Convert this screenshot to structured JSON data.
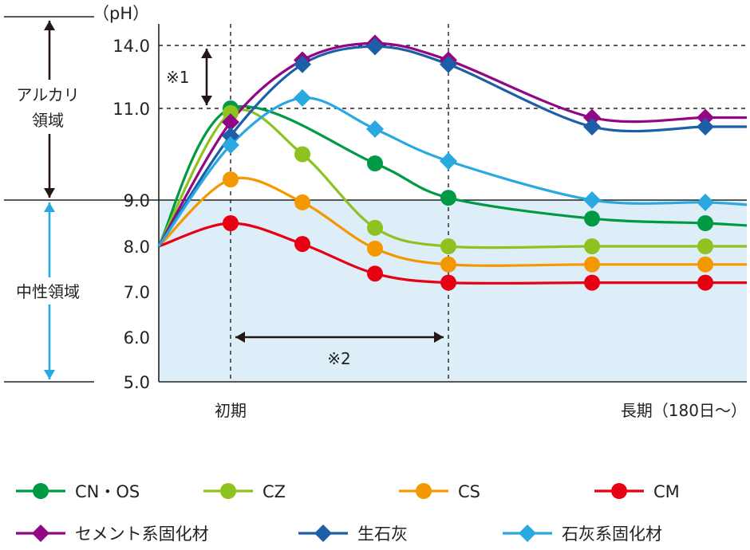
{
  "chart_data": {
    "type": "line",
    "y_unit_label": "（pH）",
    "y_ticks": [
      {
        "value": 5.0,
        "label": "5.0"
      },
      {
        "value": 6.0,
        "label": "6.0"
      },
      {
        "value": 7.0,
        "label": "7.0"
      },
      {
        "value": 8.0,
        "label": "8.0"
      },
      {
        "value": 9.0,
        "label": "9.0"
      },
      {
        "value": 11.0,
        "label": "11.0"
      },
      {
        "value": 14.0,
        "label": "14.0"
      }
    ],
    "x_labels": {
      "initial": "初期",
      "long_term": "長期（180日～）"
    },
    "region_labels": {
      "alkaline": "アルカリ\n領域",
      "neutral": "中性領域"
    },
    "annotations": {
      "note1": "※1",
      "note2": "※2"
    },
    "colors": {
      "neutral_bg": "#ddeef9",
      "alkaline_arrow": "#231815",
      "neutral_arrow": "#29a9e0",
      "neutral_label": "#29a9e0"
    },
    "x_points": [
      "start",
      "initial",
      "t2",
      "t3",
      "t4",
      "long1",
      "long2",
      "end"
    ],
    "series": [
      {
        "name": "CN・OS",
        "color": "#009a44",
        "marker": "circle",
        "values": [
          8.0,
          11.0,
          null,
          9.8,
          9.05,
          8.6,
          8.5,
          8.45
        ]
      },
      {
        "name": "CZ",
        "color": "#8dc21f",
        "marker": "circle",
        "values": [
          8.0,
          10.9,
          10.0,
          8.4,
          8.0,
          8.0,
          8.0,
          8.0
        ]
      },
      {
        "name": "CS",
        "color": "#f39800",
        "marker": "circle",
        "values": [
          8.0,
          9.45,
          8.95,
          7.95,
          7.6,
          7.6,
          7.6,
          7.6
        ]
      },
      {
        "name": "CM",
        "color": "#e60012",
        "marker": "circle",
        "values": [
          8.0,
          8.5,
          8.05,
          7.4,
          7.2,
          7.2,
          7.2,
          7.2
        ]
      },
      {
        "name": "セメント系固化材",
        "color": "#920783",
        "marker": "diamond",
        "values": [
          8.0,
          10.7,
          13.3,
          14.1,
          13.3,
          10.8,
          10.8,
          10.8
        ]
      },
      {
        "name": "生石灰",
        "color": "#1d5ea8",
        "marker": "diamond",
        "values": [
          8.0,
          10.4,
          13.1,
          13.95,
          13.1,
          10.6,
          10.6,
          10.6
        ]
      },
      {
        "name": "石灰系固化材",
        "color": "#29a9e0",
        "marker": "diamond",
        "values": [
          8.0,
          10.2,
          11.5,
          null,
          9.85,
          9.0,
          8.95,
          8.9
        ]
      }
    ],
    "extra_points": [
      {
        "series": "石灰系固化材",
        "x": "t3",
        "value": 10.55
      }
    ]
  }
}
